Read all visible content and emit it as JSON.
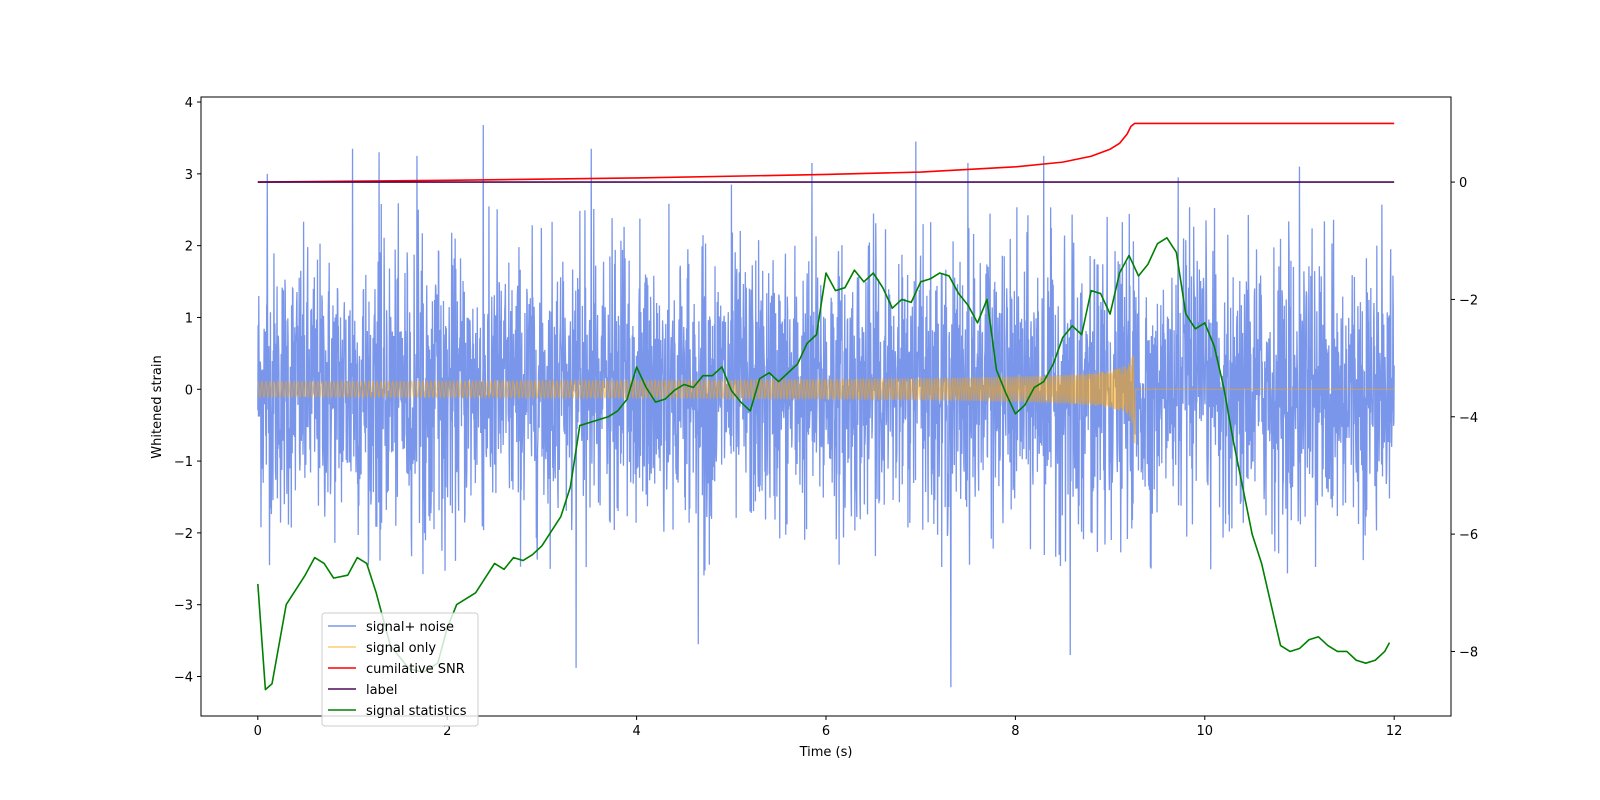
{
  "chart_data": {
    "type": "line",
    "title": "",
    "xlabel": "Time (s)",
    "ylabel": "Whitened strain",
    "ylabel_right": "",
    "xlim": [
      -0.6,
      12.6
    ],
    "ylim_left": [
      -4.55,
      4.07
    ],
    "ylim_right": [
      -9.1,
      1.45
    ],
    "x_ticks": [
      0,
      2,
      4,
      6,
      8,
      10,
      12
    ],
    "x_tick_labels": [
      "0",
      "2",
      "4",
      "6",
      "8",
      "10",
      "12"
    ],
    "y_ticks_left": [
      -4,
      -3,
      -2,
      -1,
      0,
      1,
      2,
      3,
      4
    ],
    "y_tick_labels_left": [
      "−4",
      "−3",
      "−2",
      "−1",
      "0",
      "1",
      "2",
      "3",
      "4"
    ],
    "y_ticks_right": [
      -8,
      -6,
      -4,
      -2,
      0
    ],
    "y_tick_labels_right": [
      "−8",
      "−6",
      "−4",
      "−2",
      "0"
    ],
    "grid": false,
    "legend_position": "lower-left",
    "series": [
      {
        "name": "signal+ noise",
        "axis": "left",
        "color": "#4169e1",
        "kind": "noise",
        "x_range": [
          0,
          12
        ],
        "core_amplitude": [
          -1.4,
          1.4
        ],
        "peak_envelope": [
          -2.6,
          2.6
        ],
        "extreme_spikes": [
          {
            "x": 0.1,
            "y": 3.0
          },
          {
            "x": 1.0,
            "y": 3.35
          },
          {
            "x": 1.28,
            "y": 3.3
          },
          {
            "x": 1.68,
            "y": 3.25
          },
          {
            "x": 2.38,
            "y": 3.68
          },
          {
            "x": 3.36,
            "y": -3.88
          },
          {
            "x": 3.52,
            "y": 3.35
          },
          {
            "x": 4.65,
            "y": -3.55
          },
          {
            "x": 5.0,
            "y": 2.85
          },
          {
            "x": 5.85,
            "y": 3.15
          },
          {
            "x": 6.95,
            "y": 3.45
          },
          {
            "x": 7.32,
            "y": -4.15
          },
          {
            "x": 7.5,
            "y": 3.15
          },
          {
            "x": 8.3,
            "y": 3.25
          },
          {
            "x": 8.58,
            "y": -3.7
          },
          {
            "x": 9.72,
            "y": 2.95
          },
          {
            "x": 11.0,
            "y": 3.1
          }
        ]
      },
      {
        "name": "signal only",
        "axis": "left",
        "color": "#ffa500",
        "kind": "chirp",
        "x_range": [
          0,
          9.26
        ],
        "merger_time": 9.26,
        "peak_amplitude": 0.75,
        "post_merger_value": 0
      },
      {
        "name": "cumilative SNR",
        "axis": "right",
        "color": "#ff0000",
        "x": [
          0,
          2,
          4,
          6,
          7,
          8,
          8.5,
          8.8,
          9.0,
          9.1,
          9.18,
          9.22,
          9.26,
          9.27,
          12
        ],
        "y": [
          0.0,
          0.03,
          0.07,
          0.13,
          0.17,
          0.26,
          0.34,
          0.44,
          0.56,
          0.66,
          0.82,
          0.95,
          1.0,
          1.0,
          1.0
        ]
      },
      {
        "name": "label",
        "axis": "right",
        "color": "#4b0a5c",
        "x": [
          0,
          12
        ],
        "y": [
          0,
          0
        ]
      },
      {
        "name": "signal statistics",
        "axis": "right",
        "color": "#008000",
        "x": [
          0,
          0.08,
          0.15,
          0.3,
          0.5,
          0.6,
          0.7,
          0.8,
          0.95,
          1.05,
          1.15,
          1.25,
          1.4,
          1.6,
          1.75,
          1.9,
          2.0,
          2.1,
          2.3,
          2.5,
          2.6,
          2.7,
          2.8,
          2.9,
          3.0,
          3.1,
          3.2,
          3.3,
          3.4,
          3.5,
          3.7,
          3.8,
          3.9,
          4.0,
          4.1,
          4.2,
          4.3,
          4.4,
          4.5,
          4.6,
          4.7,
          4.8,
          4.9,
          5.0,
          5.1,
          5.2,
          5.3,
          5.4,
          5.5,
          5.6,
          5.7,
          5.8,
          5.9,
          6.0,
          6.1,
          6.2,
          6.3,
          6.4,
          6.5,
          6.6,
          6.7,
          6.8,
          6.9,
          7.0,
          7.1,
          7.2,
          7.3,
          7.4,
          7.5,
          7.6,
          7.7,
          7.8,
          7.9,
          8.0,
          8.1,
          8.2,
          8.3,
          8.4,
          8.5,
          8.6,
          8.7,
          8.8,
          8.9,
          9.0,
          9.1,
          9.2,
          9.3,
          9.4,
          9.5,
          9.6,
          9.7,
          9.8,
          9.9,
          10.0,
          10.1,
          10.2,
          10.3,
          10.4,
          10.5,
          10.6,
          10.7,
          10.8,
          10.9,
          11.0,
          11.1,
          11.2,
          11.3,
          11.4,
          11.5,
          11.6,
          11.7,
          11.8,
          11.9,
          11.95
        ],
        "y": [
          -6.85,
          -8.65,
          -8.55,
          -7.2,
          -6.7,
          -6.4,
          -6.5,
          -6.75,
          -6.7,
          -6.4,
          -6.5,
          -7.0,
          -7.9,
          -8.3,
          -8.35,
          -8.2,
          -7.6,
          -7.2,
          -7.0,
          -6.5,
          -6.6,
          -6.4,
          -6.45,
          -6.35,
          -6.2,
          -5.95,
          -5.7,
          -5.2,
          -4.15,
          -4.1,
          -4.0,
          -3.9,
          -3.7,
          -3.15,
          -3.5,
          -3.75,
          -3.7,
          -3.55,
          -3.45,
          -3.5,
          -3.3,
          -3.3,
          -3.15,
          -3.55,
          -3.75,
          -3.9,
          -3.35,
          -3.25,
          -3.4,
          -3.25,
          -3.1,
          -2.75,
          -2.6,
          -1.55,
          -1.85,
          -1.8,
          -1.5,
          -1.7,
          -1.55,
          -1.8,
          -2.15,
          -2.0,
          -2.05,
          -1.7,
          -1.65,
          -1.55,
          -1.6,
          -1.9,
          -2.1,
          -2.4,
          -2.0,
          -3.2,
          -3.6,
          -3.95,
          -3.8,
          -3.5,
          -3.4,
          -3.1,
          -2.65,
          -2.45,
          -2.6,
          -1.85,
          -1.9,
          -2.25,
          -1.55,
          -1.25,
          -1.6,
          -1.4,
          -1.05,
          -0.95,
          -1.2,
          -2.25,
          -2.5,
          -2.4,
          -2.8,
          -3.5,
          -4.4,
          -5.2,
          -6.0,
          -6.5,
          -7.2,
          -7.9,
          -8.0,
          -7.95,
          -7.8,
          -7.75,
          -7.9,
          -8.0,
          -8.0,
          -8.15,
          -8.2,
          -8.15,
          -8.0,
          -7.85
        ]
      }
    ]
  }
}
